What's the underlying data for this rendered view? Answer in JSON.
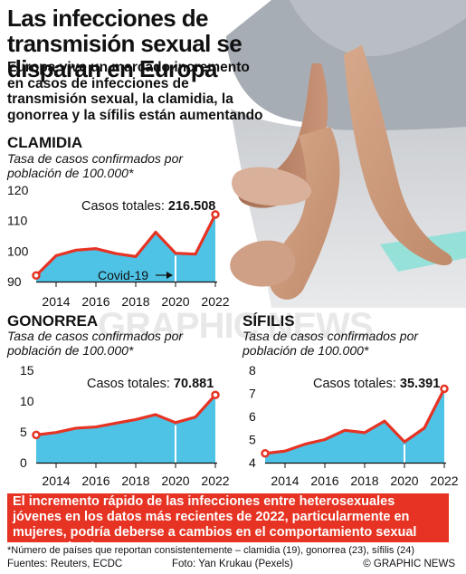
{
  "header": {
    "title": "Las infecciones de transmisión sexual se disparan en Europa",
    "subtitle": "Europa vive un marcado incremento en casos de infecciones de transmisión sexual, la clamidia, la gonorrea y la sífilis están aumentando"
  },
  "colors": {
    "accent_red": "#e63323",
    "area_blue": "#4fc3e6",
    "text": "#111111",
    "covid_line": "#ffffff"
  },
  "chart_data": [
    {
      "id": "clamidia",
      "type": "area",
      "title": "CLAMIDIA",
      "subtitle": "Tasa de casos confirmados por población de 100.000*",
      "x": [
        2013,
        2014,
        2015,
        2016,
        2017,
        2018,
        2019,
        2020,
        2021,
        2022
      ],
      "values": [
        92,
        98.5,
        100.3,
        100.8,
        99.2,
        98.2,
        106.2,
        99.3,
        99,
        112
      ],
      "ylim": [
        90,
        120
      ],
      "yticks": [
        "90",
        "100",
        "110",
        "120"
      ],
      "xticks": [
        "2014",
        "2016",
        "2018",
        "2020",
        "2022"
      ],
      "total_label": "Casos totales:",
      "total_value": "216.508",
      "annotation": "Covid-19"
    },
    {
      "id": "gonorrea",
      "type": "area",
      "title": "GONORREA",
      "subtitle": "Tasa de casos confirmados por población de 100.000*",
      "x": [
        2013,
        2014,
        2015,
        2016,
        2017,
        2018,
        2019,
        2020,
        2021,
        2022
      ],
      "values": [
        4.5,
        4.9,
        5.6,
        5.8,
        6.4,
        7,
        7.8,
        6.5,
        7.4,
        11
      ],
      "ylim": [
        0,
        15
      ],
      "yticks": [
        "0",
        "5",
        "10",
        "15"
      ],
      "xticks": [
        "2014",
        "2016",
        "2018",
        "2020",
        "2022"
      ],
      "total_label": "Casos totales:",
      "total_value": "70.881"
    },
    {
      "id": "sifilis",
      "type": "area",
      "title": "SÍFILIS",
      "subtitle": "Tasa de casos confirmados por población de 100.000*",
      "x": [
        2013,
        2014,
        2015,
        2016,
        2017,
        2018,
        2019,
        2020,
        2021,
        2022
      ],
      "values": [
        4.4,
        4.5,
        4.8,
        5.0,
        5.4,
        5.3,
        5.8,
        4.9,
        5.5,
        7.2
      ],
      "ylim": [
        4,
        8
      ],
      "yticks": [
        "4",
        "5",
        "6",
        "7",
        "8"
      ],
      "xticks": [
        "2014",
        "2016",
        "2018",
        "2020",
        "2022"
      ],
      "total_label": "Casos totales:",
      "total_value": "35.391"
    }
  ],
  "banner": {
    "text": "El incremento rápido de las infecciones entre heterosexuales jóvenes en los datos más recientes de 2022, particularmente en mujeres, podría deberse a cambios en el comportamiento sexual postpandemia"
  },
  "footer": {
    "footnote": "*Número de países que reportan consistentemente – clamidia (19), gonorrea (23), sífilis (24)",
    "sources": "Fuentes: Reuters, ECDC",
    "photo_credit": "Foto: Yan Krukau (Pexels)",
    "brand": "© GRAPHIC NEWS"
  },
  "watermark": "GRAPHIC NEWS"
}
